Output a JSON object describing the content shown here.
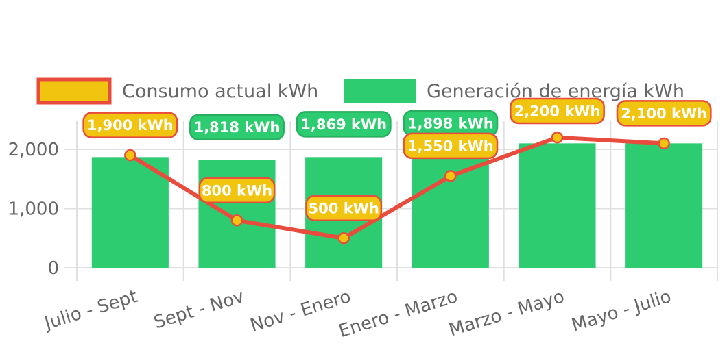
{
  "chart_data": {
    "type": "bar",
    "categories": [
      "Julio - Sept",
      "Sept - Nov",
      "Nov - Enero",
      "Enero - Marzo",
      "Marzo - Mayo",
      "Mayo - Julio"
    ],
    "series": [
      {
        "name": "Consumo actual kWh",
        "type": "line",
        "values": [
          1900,
          800,
          500,
          1550,
          2200,
          2100
        ],
        "labels": [
          "1,900 kWh",
          "800 kWh",
          "500 kWh",
          "1,550 kWh",
          "2,200 kWh",
          "2,100 kWh"
        ],
        "color": "#e74c3c",
        "point_color": "#f1c40f"
      },
      {
        "name": "Generación de energía kWh",
        "type": "bar",
        "values": [
          1869,
          1818,
          1869,
          1898,
          2100,
          2100
        ],
        "labels": [
          "",
          "1,818 kWh",
          "1,869 kWh",
          "1,898 kWh",
          "",
          ""
        ],
        "color": "#2ecc71"
      }
    ],
    "yticks": [
      "0",
      "1,000",
      "2,000"
    ],
    "ytick_values": [
      0,
      1000,
      2000
    ],
    "ylim": [
      0,
      2500
    ],
    "grid": true,
    "legend": "top"
  }
}
